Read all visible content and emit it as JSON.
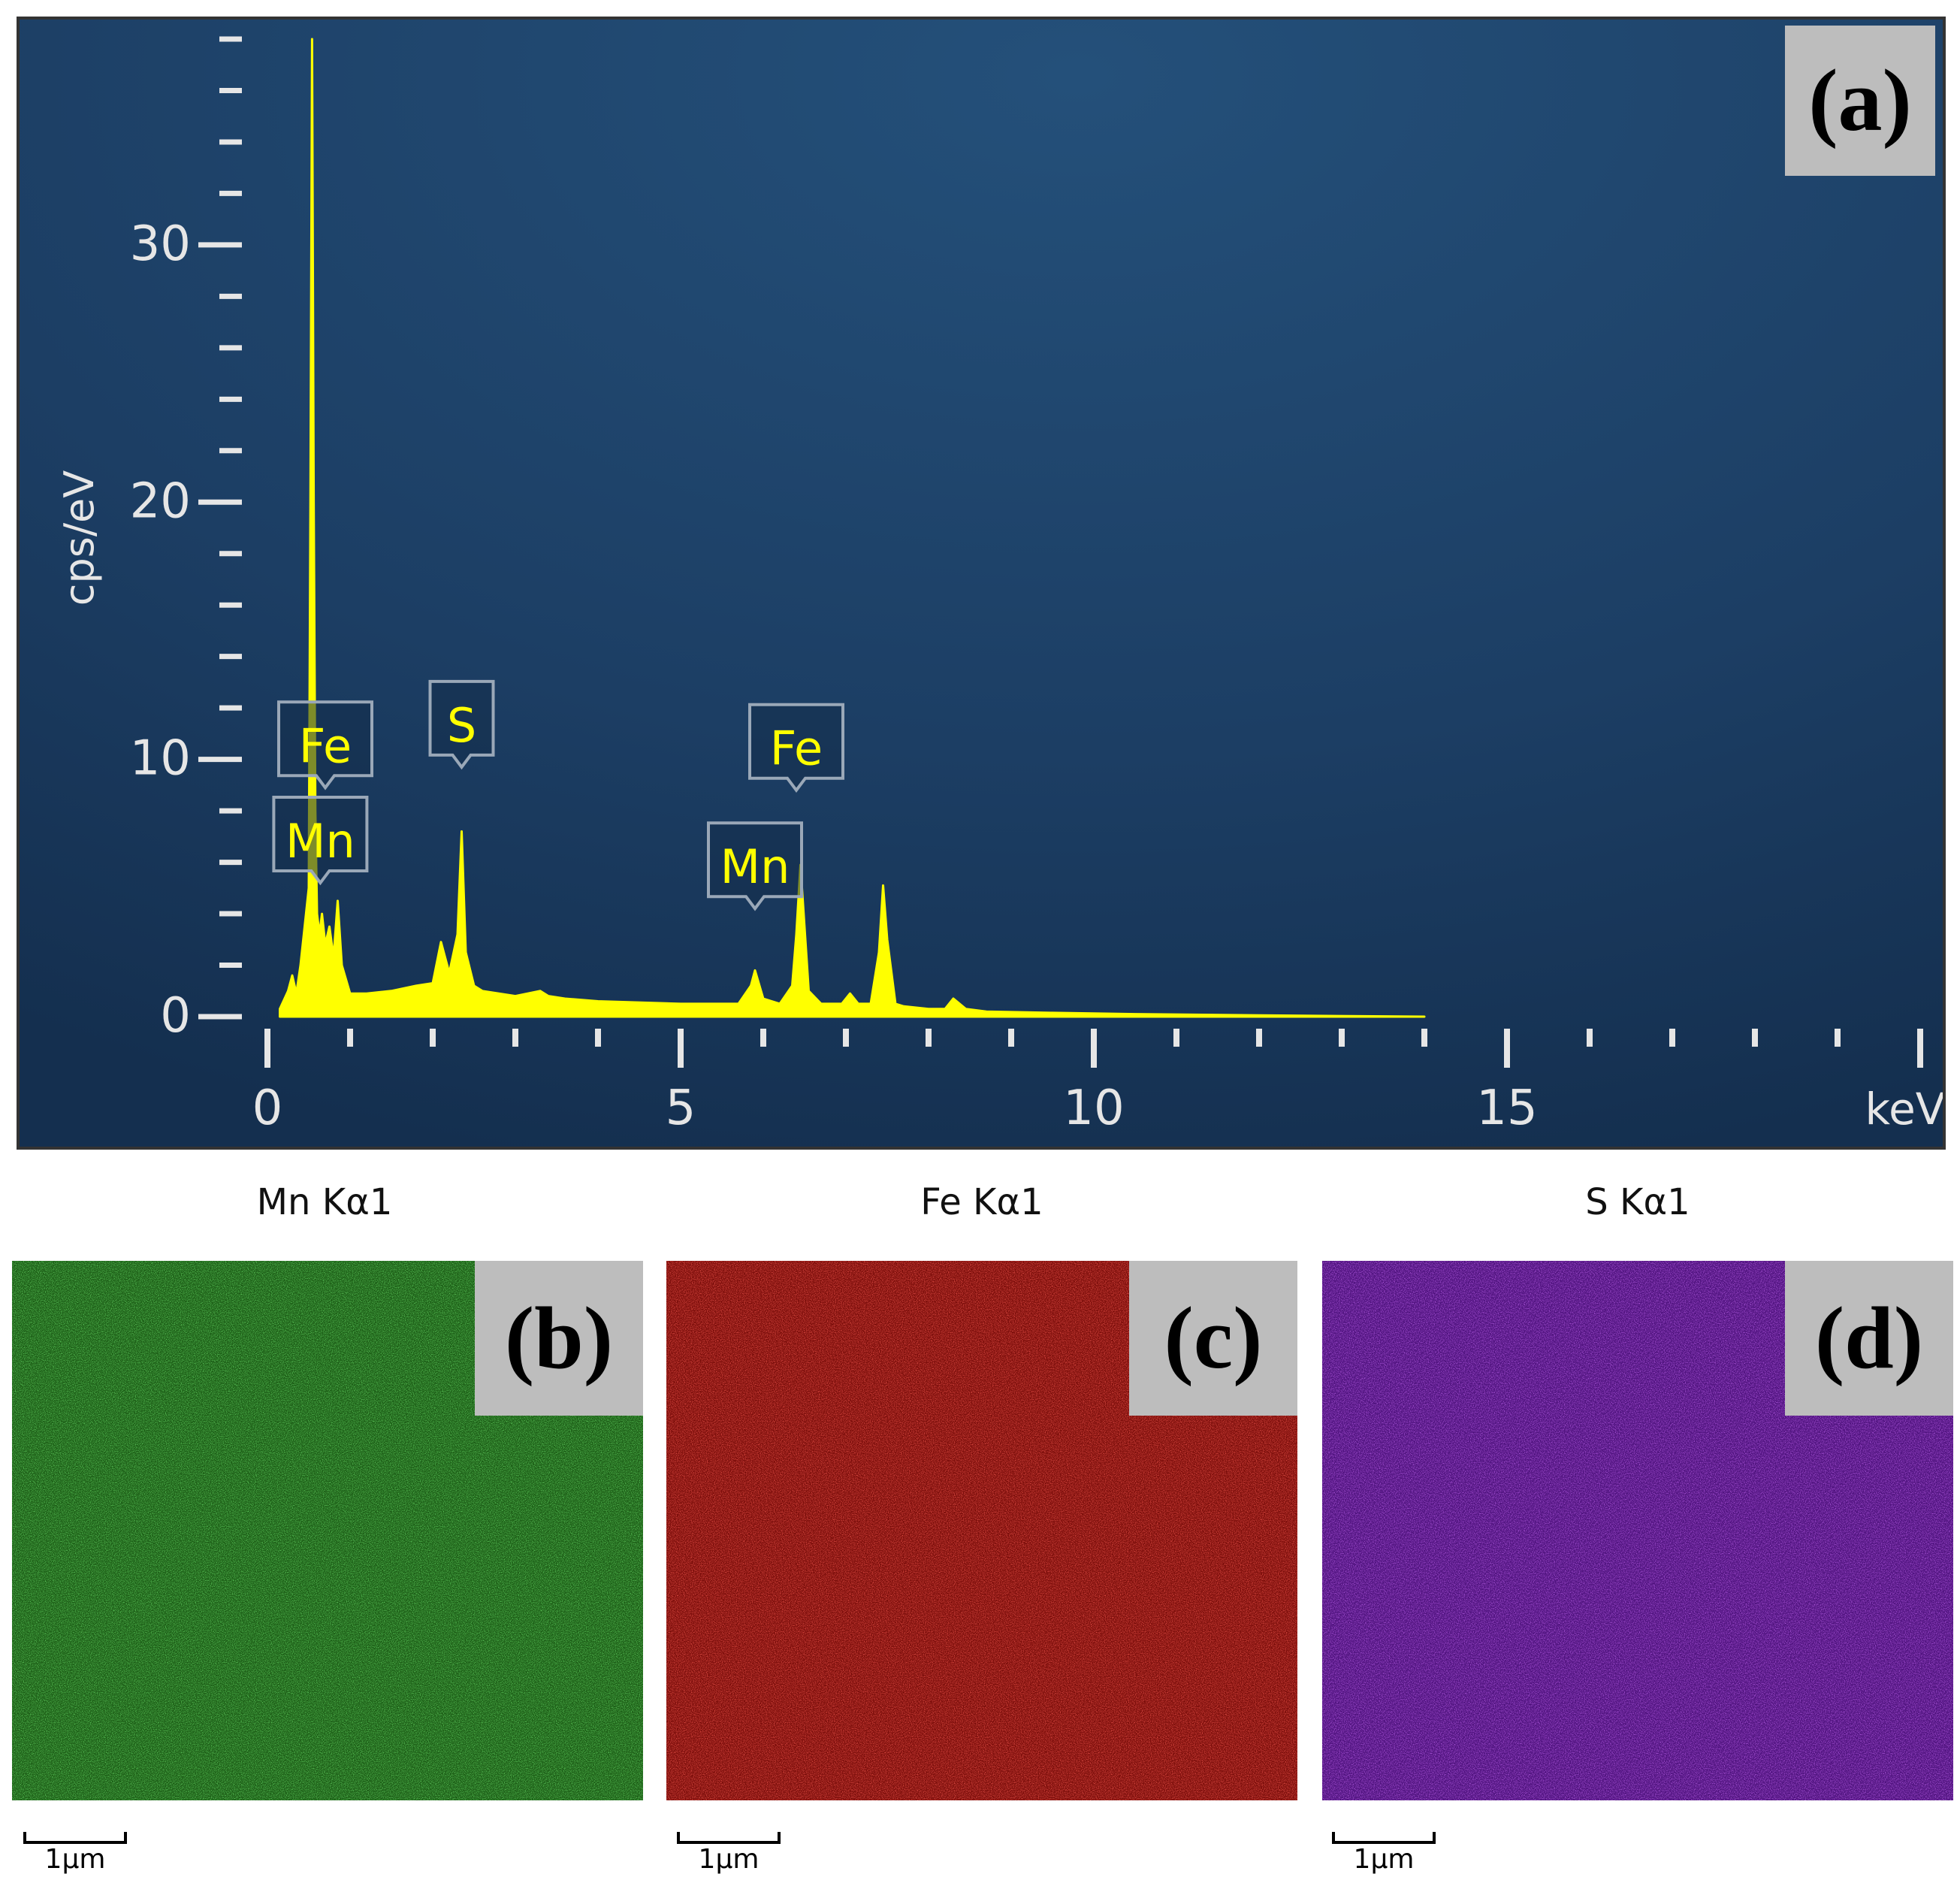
{
  "figure_labels": {
    "a": "(a)",
    "b": "(b)",
    "c": "(c)",
    "d": "(d)"
  },
  "colors": {
    "spectrum_bg": "#1d3f63",
    "spectrum_line": "#ffff00",
    "axis_text": "#e6e6e6",
    "mn_map": "#2fae2a",
    "fe_map": "#d3150f",
    "s_map": "#8a1ecf",
    "label_box": "#bdbdbd"
  },
  "chart_data": [
    {
      "type": "line",
      "title": "",
      "xlabel": "keV",
      "ylabel": "cps/eV",
      "xlim": [
        0,
        20
      ],
      "ylim": [
        0,
        38
      ],
      "x_ticks": [
        0,
        5,
        10,
        15
      ],
      "y_ticks": [
        0,
        10,
        20,
        30
      ],
      "grid": false,
      "series": [
        {
          "x": [
            0.15,
            0.25,
            0.3,
            0.35,
            0.4,
            0.45,
            0.5,
            0.52,
            0.54,
            0.56,
            0.58,
            0.6,
            0.63,
            0.66,
            0.7,
            0.75,
            0.8,
            0.85,
            0.9,
            1.0,
            1.2,
            1.5,
            1.8,
            2.0,
            2.1,
            2.2,
            2.3,
            2.35,
            2.4,
            2.5,
            2.6,
            3.0,
            3.3,
            3.4,
            3.6,
            4.0,
            5.0,
            5.7,
            5.85,
            5.9,
            6.0,
            6.2,
            6.35,
            6.4,
            6.45,
            6.55,
            6.7,
            6.95,
            7.05,
            7.15,
            7.3,
            7.4,
            7.45,
            7.5,
            7.6,
            7.7,
            8.0,
            8.2,
            8.3,
            8.45,
            8.7,
            9.5,
            10.5,
            12.0,
            14.0
          ],
          "y": [
            0.3,
            1.0,
            1.6,
            0.9,
            2.0,
            3.5,
            5.0,
            20.0,
            38.0,
            20.0,
            8.0,
            4.0,
            3.2,
            4.0,
            2.8,
            3.5,
            2.3,
            4.5,
            2.0,
            0.9,
            0.9,
            1.0,
            1.2,
            1.3,
            2.9,
            1.7,
            3.2,
            7.2,
            2.5,
            1.2,
            1.0,
            0.8,
            1.0,
            0.8,
            0.7,
            0.6,
            0.5,
            0.5,
            1.2,
            1.8,
            0.7,
            0.5,
            1.2,
            3.2,
            5.9,
            1.0,
            0.5,
            0.5,
            0.9,
            0.5,
            0.5,
            2.5,
            5.1,
            3.0,
            0.5,
            0.4,
            0.3,
            0.3,
            0.7,
            0.3,
            0.2,
            0.15,
            0.1,
            0.05,
            0.0
          ]
        }
      ],
      "annotations": [
        {
          "text": "Fe",
          "x": 0.7,
          "y": 8.9
        },
        {
          "text": "Mn",
          "x": 0.64,
          "y": 5.2
        },
        {
          "text": "S",
          "x": 2.35,
          "y": 9.7
        },
        {
          "text": "Fe",
          "x": 6.4,
          "y": 8.8
        },
        {
          "text": "Mn",
          "x": 5.9,
          "y": 4.2
        }
      ]
    }
  ],
  "maps": [
    {
      "title": "Mn Kα1",
      "label": "(b)",
      "scale": "1μm"
    },
    {
      "title": "Fe Kα1",
      "label": "(c)",
      "scale": "1μm"
    },
    {
      "title": "S Kα1",
      "label": "(d)",
      "scale": "1μm"
    }
  ]
}
